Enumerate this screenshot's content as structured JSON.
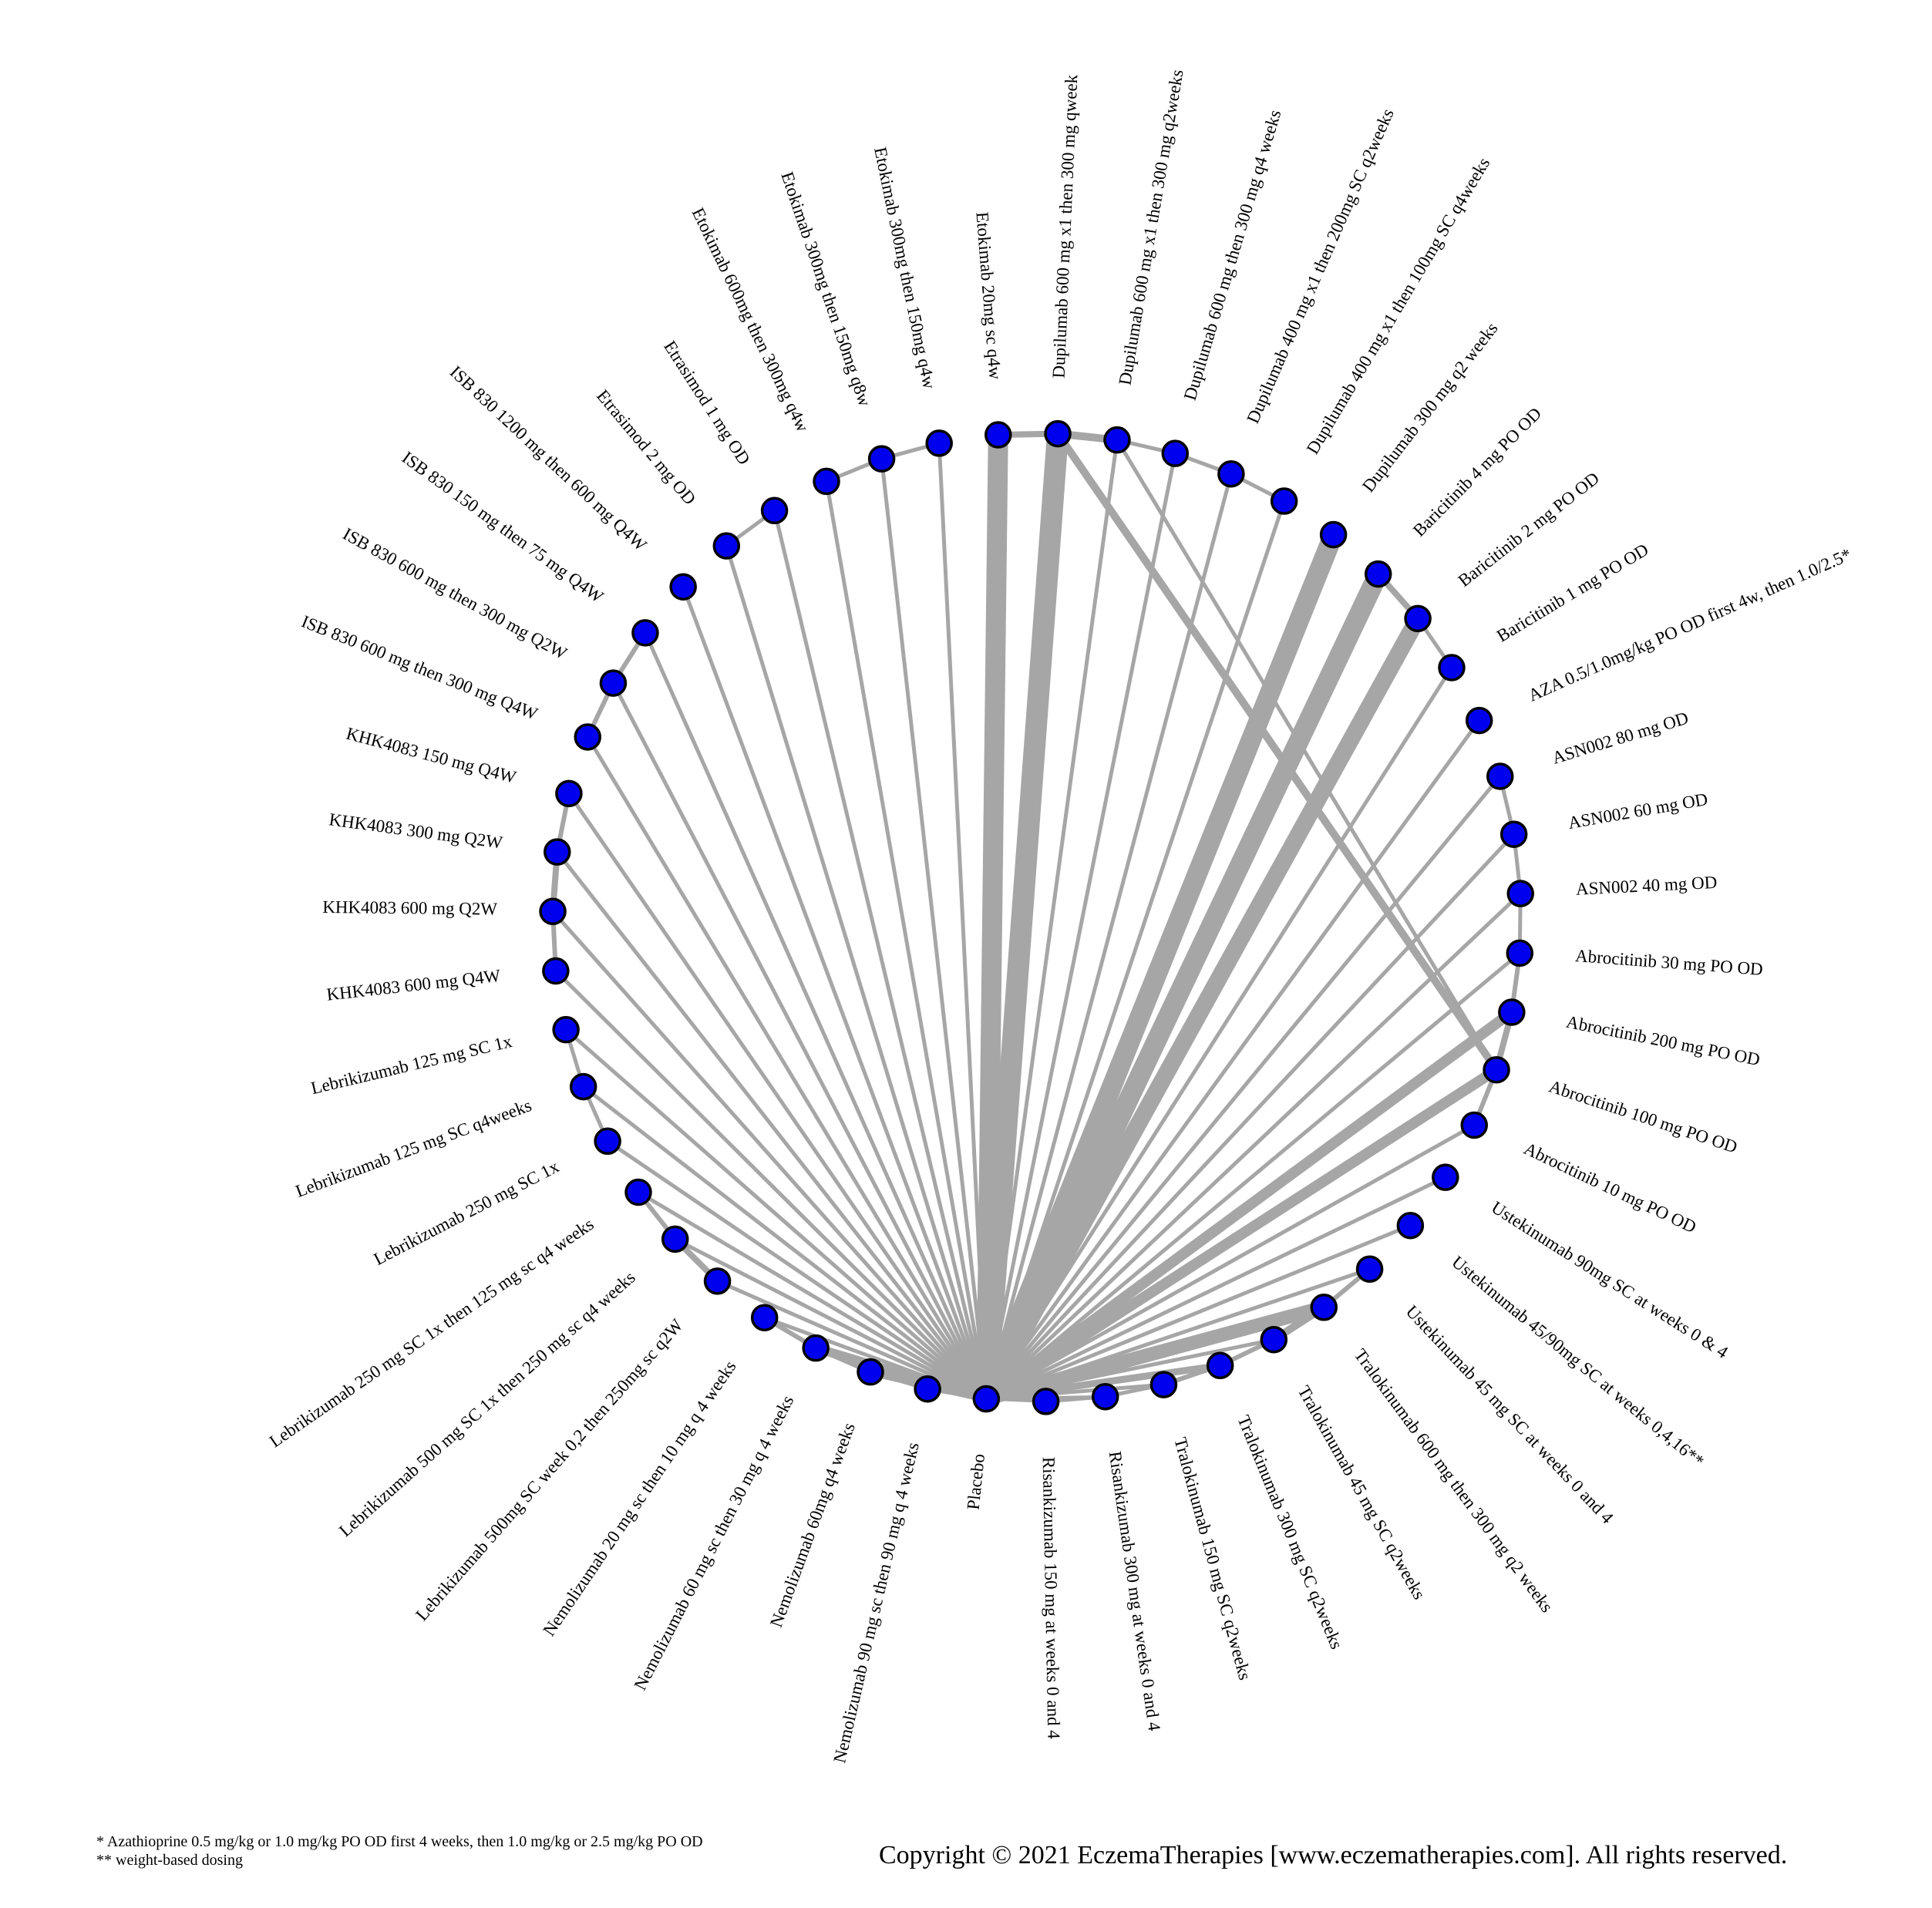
{
  "network": {
    "edge_color": "#a6a6a6",
    "node_color": "#0000ee",
    "node_stroke": "#000000",
    "hub": "Placebo",
    "nodes": [
      "Placebo",
      "Risankizumab 150 mg at weeks 0 and 4",
      "Risankizumab 300 mg at weeks 0 and 4",
      "Tralokinumab 150 mg SC q2weeks",
      "Tralokinumab 300 mg SC q2weeks",
      "Tralokinumab 45 mg SC q2weeks",
      "Tralokinumab 600 mg then 300 mg q2 weeks",
      "Ustekinumab 45 mg SC at weeks 0 and 4",
      "Ustekinumab 45/90mg SC at weeks 0,4,16**",
      "Ustekinumab 90mg SC at weeks 0 & 4",
      "Abrocitinib 10 mg PO OD",
      "Abrocitinib 100 mg PO OD",
      "Abrocitinib 200 mg PO OD",
      "Abrocitinib 30 mg PO OD",
      "ASN002 40 mg OD",
      "ASN002 60 mg OD",
      "ASN002 80 mg OD",
      "AZA 0.5/1.0mg/kg PO OD first 4w, then 1.0/2.5*",
      "Baricitinib 1 mg PO OD",
      "Baricitinib 2 mg PO OD",
      "Baricitinib 4 mg PO OD",
      "Dupilumab 300 mg q2 weeks",
      "Dupilumab 400 mg x1 then 100mg SC q4weeks",
      "Dupilumab 400 mg x1 then 200mg SC q2weeks",
      "Dupilumab 600 mg then 300 mg q4 weeks",
      "Dupilumab 600 mg x1 then 300 mg q2weeks",
      "Dupilumab 600 mg x1 then 300 mg qweek",
      "Etokimab 20mg sc q4w",
      "Etokimab 300mg then 150mg q4w",
      "Etokimab 300mg then 150mg q8w",
      "Etokimab 600mg then 300mg q4w",
      "Etrasimod 1 mg OD",
      "Etrasimod 2 mg OD",
      "ISB 830 1200 mg then 600 mg Q4W",
      "ISB 830 150 mg then 75 mg Q4W",
      "ISB 830 600 mg then 300 mg Q2W",
      "ISB 830 600 mg then 300 mg Q4W",
      "KHK4083 150 mg Q4W",
      "KHK4083 300 mg Q2W",
      "KHK4083 600 mg Q2W",
      "KHK4083 600 mg Q4W",
      "Lebrikizumab 125 mg SC 1x",
      "Lebrikizumab 125 mg SC q4weeks",
      "Lebrikizumab 250 mg SC 1x",
      "Lebrikizumab 250 mg SC 1x then 125 mg sc q4 weeks",
      "Lebrikizumab 500 mg SC 1x then 250 mg sc q4 weeks",
      "Lebrikizumab 500mg SC week 0,2 then 250mg sc q2W",
      "Nemolizumab 20 mg sc then 10 mg q 4 weeks",
      "Nemolizumab 60 mg sc then 30 mg q 4 weeks",
      "Nemolizumab 60mg q4 weeks",
      "Nemolizumab 90 mg sc then 90 mg q 4 weeks"
    ],
    "edges": [
      {
        "a": 0,
        "b": 1,
        "w": 4
      },
      {
        "a": 0,
        "b": 2,
        "w": 4
      },
      {
        "a": 0,
        "b": 3,
        "w": 5
      },
      {
        "a": 0,
        "b": 4,
        "w": 9
      },
      {
        "a": 0,
        "b": 5,
        "w": 5
      },
      {
        "a": 0,
        "b": 6,
        "w": 18
      },
      {
        "a": 0,
        "b": 7,
        "w": 5
      },
      {
        "a": 0,
        "b": 8,
        "w": 5
      },
      {
        "a": 0,
        "b": 9,
        "w": 5
      },
      {
        "a": 0,
        "b": 10,
        "w": 5
      },
      {
        "a": 0,
        "b": 11,
        "w": 14
      },
      {
        "a": 0,
        "b": 12,
        "w": 14
      },
      {
        "a": 0,
        "b": 13,
        "w": 5
      },
      {
        "a": 0,
        "b": 14,
        "w": 5
      },
      {
        "a": 0,
        "b": 15,
        "w": 5
      },
      {
        "a": 0,
        "b": 16,
        "w": 5
      },
      {
        "a": 0,
        "b": 17,
        "w": 5
      },
      {
        "a": 0,
        "b": 18,
        "w": 5
      },
      {
        "a": 0,
        "b": 19,
        "w": 22
      },
      {
        "a": 0,
        "b": 20,
        "w": 26
      },
      {
        "a": 0,
        "b": 21,
        "w": 26
      },
      {
        "a": 0,
        "b": 22,
        "w": 5
      },
      {
        "a": 0,
        "b": 23,
        "w": 5
      },
      {
        "a": 0,
        "b": 24,
        "w": 5
      },
      {
        "a": 0,
        "b": 25,
        "w": 5
      },
      {
        "a": 0,
        "b": 26,
        "w": 28
      },
      {
        "a": 0,
        "b": 27,
        "w": 26
      },
      {
        "a": 0,
        "b": 28,
        "w": 5
      },
      {
        "a": 0,
        "b": 29,
        "w": 5
      },
      {
        "a": 0,
        "b": 30,
        "w": 5
      },
      {
        "a": 0,
        "b": 31,
        "w": 5
      },
      {
        "a": 0,
        "b": 32,
        "w": 5
      },
      {
        "a": 0,
        "b": 33,
        "w": 5
      },
      {
        "a": 0,
        "b": 34,
        "w": 5
      },
      {
        "a": 0,
        "b": 35,
        "w": 5
      },
      {
        "a": 0,
        "b": 36,
        "w": 5
      },
      {
        "a": 0,
        "b": 37,
        "w": 5
      },
      {
        "a": 0,
        "b": 38,
        "w": 5
      },
      {
        "a": 0,
        "b": 39,
        "w": 5
      },
      {
        "a": 0,
        "b": 40,
        "w": 5
      },
      {
        "a": 0,
        "b": 41,
        "w": 5
      },
      {
        "a": 0,
        "b": 42,
        "w": 5
      },
      {
        "a": 0,
        "b": 43,
        "w": 5
      },
      {
        "a": 0,
        "b": 44,
        "w": 5
      },
      {
        "a": 0,
        "b": 45,
        "w": 5
      },
      {
        "a": 0,
        "b": 46,
        "w": 5
      },
      {
        "a": 0,
        "b": 47,
        "w": 5
      },
      {
        "a": 0,
        "b": 48,
        "w": 12
      },
      {
        "a": 0,
        "b": 49,
        "w": 10
      },
      {
        "a": 0,
        "b": 50,
        "w": 5
      },
      {
        "a": 1,
        "b": 2,
        "w": 5
      },
      {
        "a": 2,
        "b": 3,
        "w": 5
      },
      {
        "a": 3,
        "b": 4,
        "w": 6
      },
      {
        "a": 4,
        "b": 5,
        "w": 6
      },
      {
        "a": 5,
        "b": 6,
        "w": 10
      },
      {
        "a": 6,
        "b": 7,
        "w": 6
      },
      {
        "a": 10,
        "b": 11,
        "w": 6
      },
      {
        "a": 11,
        "b": 12,
        "w": 8
      },
      {
        "a": 12,
        "b": 13,
        "w": 6
      },
      {
        "a": 13,
        "b": 14,
        "w": 5
      },
      {
        "a": 14,
        "b": 15,
        "w": 5
      },
      {
        "a": 15,
        "b": 16,
        "w": 5
      },
      {
        "a": 18,
        "b": 19,
        "w": 5
      },
      {
        "a": 19,
        "b": 20,
        "w": 8
      },
      {
        "a": 22,
        "b": 23,
        "w": 5
      },
      {
        "a": 23,
        "b": 24,
        "w": 5
      },
      {
        "a": 24,
        "b": 25,
        "w": 5
      },
      {
        "a": 25,
        "b": 26,
        "w": 10
      },
      {
        "a": 26,
        "b": 27,
        "w": 8
      },
      {
        "a": 28,
        "b": 29,
        "w": 5
      },
      {
        "a": 29,
        "b": 30,
        "w": 5
      },
      {
        "a": 31,
        "b": 32,
        "w": 5
      },
      {
        "a": 34,
        "b": 35,
        "w": 6
      },
      {
        "a": 35,
        "b": 36,
        "w": 6
      },
      {
        "a": 37,
        "b": 38,
        "w": 6
      },
      {
        "a": 38,
        "b": 39,
        "w": 8
      },
      {
        "a": 39,
        "b": 40,
        "w": 6
      },
      {
        "a": 41,
        "b": 42,
        "w": 5
      },
      {
        "a": 42,
        "b": 43,
        "w": 5
      },
      {
        "a": 44,
        "b": 45,
        "w": 6
      },
      {
        "a": 45,
        "b": 46,
        "w": 8
      },
      {
        "a": 47,
        "b": 48,
        "w": 6
      },
      {
        "a": 48,
        "b": 49,
        "w": 6
      },
      {
        "a": 49,
        "b": 50,
        "w": 5
      },
      {
        "a": 26,
        "b": 11,
        "w": 10
      },
      {
        "a": 25,
        "b": 11,
        "w": 5
      }
    ]
  },
  "footnotes": {
    "line1": "* Azathioprine 0.5 mg/kg or 1.0 mg/kg PO OD first 4 weeks, then 1.0 mg/kg  or 2.5 mg/kg PO OD",
    "line2": "** weight-based dosing"
  },
  "copyright": "Copyright © 2021 EczemaTherapies [www.eczematherapies.com]. All rights reserved."
}
